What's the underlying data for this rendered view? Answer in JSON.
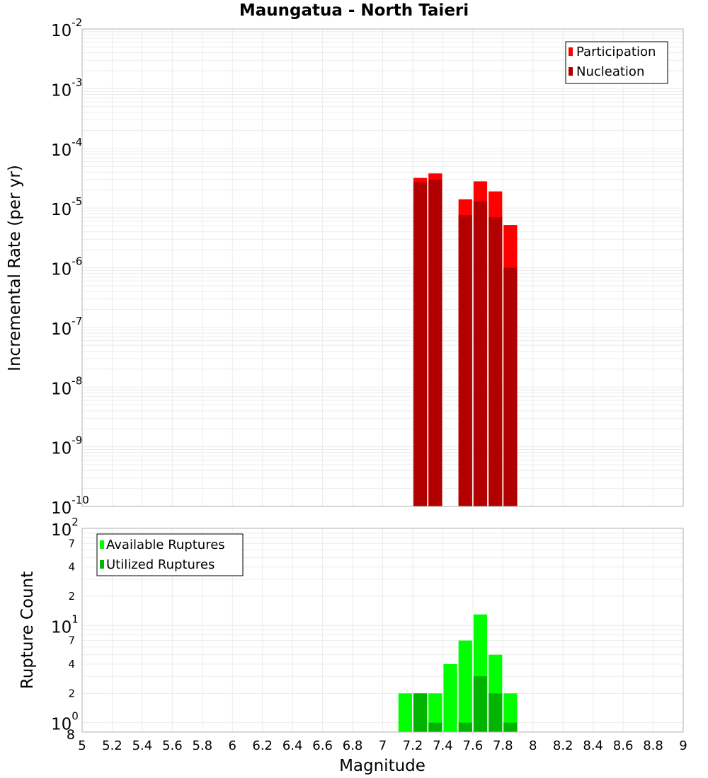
{
  "title": "Maungatua - North Taieri",
  "chart_data": [
    {
      "type": "bar",
      "panel": "top",
      "yscale": "log",
      "ylabel": "Incremental Rate (per yr)",
      "ylim": [
        1e-10,
        0.01
      ],
      "ytick_exponents": [
        -10,
        -9,
        -8,
        -7,
        -6,
        -5,
        -4,
        -3,
        -2
      ],
      "ytick_base": "10",
      "legend_position": "top-right",
      "bin_width": 0.1,
      "series": [
        {
          "name": "Participation",
          "color": "#ff0000",
          "x": [
            7.25,
            7.35,
            7.55,
            7.65,
            7.75,
            7.85
          ],
          "values": [
            3.2e-05,
            3.8e-05,
            1.4e-05,
            2.8e-05,
            1.9e-05,
            5.2e-06
          ]
        },
        {
          "name": "Nucleation",
          "color": "#b20000",
          "x": [
            7.25,
            7.35,
            7.55,
            7.65,
            7.75,
            7.85
          ],
          "values": [
            2.7e-05,
            3e-05,
            7.6e-06,
            1.3e-05,
            7e-06,
            1e-06
          ]
        }
      ]
    },
    {
      "type": "bar",
      "panel": "bottom",
      "yscale": "log",
      "ylabel": "Rupture Count",
      "xlabel": "Magnitude",
      "ylim": [
        0.8,
        100
      ],
      "major_tick_exponents": [
        0,
        1,
        2
      ],
      "minor_ticks": [
        {
          "value": 0.8,
          "label": "8"
        },
        {
          "value": 2,
          "label": "2"
        },
        {
          "value": 4,
          "label": "4"
        },
        {
          "value": 7,
          "label": "7"
        },
        {
          "value": 20,
          "label": "2"
        },
        {
          "value": 40,
          "label": "4"
        },
        {
          "value": 70,
          "label": "7"
        }
      ],
      "xlim": [
        5,
        9
      ],
      "xticks": [
        5,
        5.2,
        5.4,
        5.6,
        5.8,
        6,
        6.2,
        6.4,
        6.6,
        6.8,
        7,
        7.2,
        7.4,
        7.6,
        7.8,
        8,
        8.2,
        8.4,
        8.6,
        8.8,
        9
      ],
      "legend_position": "top-left",
      "bin_width": 0.1,
      "series": [
        {
          "name": "Available Ruptures",
          "color": "#00ff00",
          "x": [
            7.15,
            7.25,
            7.35,
            7.45,
            7.55,
            7.65,
            7.75,
            7.85
          ],
          "values": [
            2,
            2,
            2,
            4,
            7,
            13,
            5,
            2
          ]
        },
        {
          "name": "Utilized Ruptures",
          "color": "#00b400",
          "x": [
            7.15,
            7.25,
            7.35,
            7.45,
            7.55,
            7.65,
            7.75,
            7.85
          ],
          "values": [
            0,
            2,
            1,
            0,
            1,
            3,
            2,
            1
          ]
        }
      ]
    }
  ]
}
